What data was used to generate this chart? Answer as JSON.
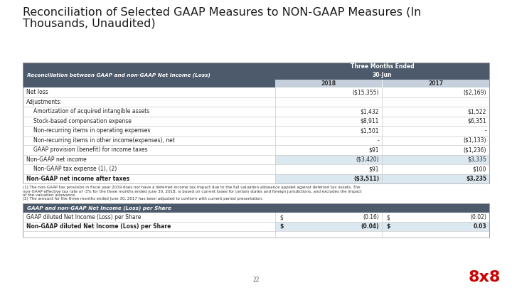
{
  "title_line1": "Reconciliation of Selected GAAP Measures to NON-GAAP Measures (In",
  "title_line2": "Thousands, Unaudited)",
  "title_fontsize": 11.5,
  "bg_color": "#ffffff",
  "header_dark": "#4d5a6b",
  "col_header_bg": "#c5d0dc",
  "highlight_bg": "#dce8f0",
  "col1_label": "Reconciliation between GAAP and non-GAAP Net Income (Loss)",
  "col2_label": "2018",
  "col3_label": "2017",
  "three_months_label": "Three Months Ended",
  "jun_label": "30-Jun",
  "rows": [
    {
      "label": "Net loss",
      "val2018": "($15,355)",
      "val2017": "($2,169)",
      "indent": 0,
      "bold": false,
      "highlight": false
    },
    {
      "label": "Adjustments:",
      "val2018": "",
      "val2017": "",
      "indent": 0,
      "bold": false,
      "highlight": false
    },
    {
      "label": "Amortization of acquired intangible assets",
      "val2018": "$1,432",
      "val2017": "$1,522",
      "indent": 1,
      "bold": false,
      "highlight": false
    },
    {
      "label": "Stock-based compensation expense",
      "val2018": "$8,911",
      "val2017": "$6,351",
      "indent": 1,
      "bold": false,
      "highlight": false
    },
    {
      "label": "Non-recurring items in operating expenses",
      "val2018": "$1,501",
      "val2017": "-",
      "indent": 1,
      "bold": false,
      "highlight": false
    },
    {
      "label": "Non-recurring items in other income(expenses), net",
      "val2018": "-",
      "val2017": "($1,133)",
      "indent": 1,
      "bold": false,
      "highlight": false
    },
    {
      "label": "GAAP provision (benefit) for income taxes",
      "val2018": "$91",
      "val2017": "($1,236)",
      "indent": 1,
      "bold": false,
      "highlight": false
    },
    {
      "label": "Non-GAAP net income",
      "val2018": "($3,420)",
      "val2017": "$3,335",
      "indent": 0,
      "bold": false,
      "highlight": true
    },
    {
      "label": "Non-GAAP tax expense (1), (2)",
      "val2018": "$91",
      "val2017": "$100",
      "indent": 1,
      "bold": false,
      "highlight": false
    },
    {
      "label": "Non-GAAP net income after taxes",
      "val2018": "($3,511)",
      "val2017": "$3,235",
      "indent": 0,
      "bold": true,
      "highlight": true
    }
  ],
  "footnotes": [
    "(1) The non-GAAP tax provision in fiscal year 2019 does not have a deferred income tax impact due to the full valuation allowance applied against deferred tax assets. The",
    "non-GAAP effective tax rate of -3% for the three months ended June 30, 2018, is based on current taxes for certain states and foreign jurisdictions, and excludes the impact",
    "of the valuation allowance.",
    "(2) The amount for the three months ended June 30, 2017 has been adjusted to conform with current period presentation."
  ],
  "table2_header": "GAAP and non-GAAP Net Income (Loss) per Share",
  "table2_rows": [
    {
      "label": "GAAP diluted Net Income (Loss) per Share",
      "sym2018": "$",
      "val2018": "(0.16)",
      "sym2017": "$",
      "val2017": "(0.02)",
      "bold": false,
      "highlight": false
    },
    {
      "label": "Non-GAAP diluted Net Income (Loss) per Share",
      "sym2018": "$",
      "val2018": "(0.04)",
      "sym2017": "$",
      "val2017": "0.03",
      "bold": true,
      "highlight": true
    }
  ],
  "page_num": "22",
  "logo_text": "8x8",
  "logo_color": "#cc0000"
}
